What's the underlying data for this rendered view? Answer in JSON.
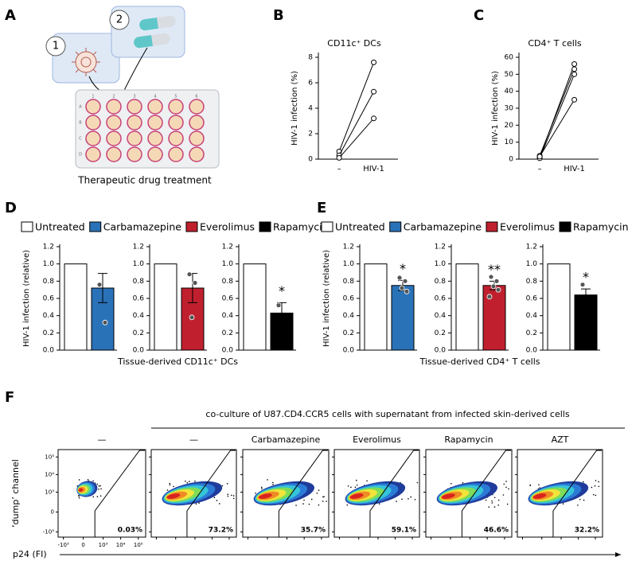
{
  "figure_a": {
    "letter": "A",
    "steps": [
      "1",
      "2"
    ],
    "plate_columns": [
      "1",
      "2",
      "3",
      "4",
      "5",
      "6"
    ],
    "plate_rows": [
      "A",
      "B",
      "C",
      "D"
    ],
    "caption": "Therapeutic drug treatment"
  },
  "chart_data": [
    {
      "type": "line",
      "letter": "B",
      "title": "CD11c⁺ DCs",
      "ylabel": "HIV-1 infection (%)",
      "categories": [
        "–",
        "HIV-1"
      ],
      "series": [
        {
          "values": [
            0.6,
            7.6
          ]
        },
        {
          "values": [
            0.3,
            5.3
          ]
        },
        {
          "values": [
            0.1,
            3.2
          ]
        }
      ],
      "color": "#000000",
      "ylim": [
        0,
        8
      ],
      "yticks": [
        0,
        2,
        4,
        6,
        8
      ]
    },
    {
      "type": "line",
      "letter": "C",
      "title": "CD4⁺ T cells",
      "ylabel": "HIV-1 infection (%)",
      "categories": [
        "–",
        "HIV-1"
      ],
      "series": [
        {
          "values": [
            1,
            56
          ]
        },
        {
          "values": [
            2,
            53
          ]
        },
        {
          "values": [
            0.5,
            50
          ]
        },
        {
          "values": [
            1.5,
            35
          ]
        }
      ],
      "color": "#000000",
      "ylim": [
        0,
        60
      ],
      "yticks": [
        0,
        10,
        20,
        30,
        40,
        50,
        60
      ]
    },
    {
      "type": "bar",
      "letter": "D",
      "legend": [
        {
          "name": "Untreated",
          "color": "#ffffff"
        },
        {
          "name": "Carbamazepine",
          "color": "#2a72b8"
        },
        {
          "name": "Everolimus",
          "color": "#c0202e"
        },
        {
          "name": "Rapamycin",
          "color": "#000000"
        }
      ],
      "ylabel": "HIV-1 infection (relative)",
      "xlabel": "Tissue-derived CD11c⁺ DCs",
      "ylim": [
        0,
        1.2
      ],
      "yticks": [
        {
          "value": 0,
          "label": "0.0"
        },
        0.2,
        0.4,
        0.6,
        0.8,
        {
          "value": 1,
          "label": "1.0"
        },
        1.2
      ],
      "subplots": [
        {
          "values": [
            1,
            0.72
          ],
          "errors": [
            null,
            0.17
          ],
          "points": [
            0.76,
            0.32
          ]
        },
        {
          "values": [
            1,
            0.72
          ],
          "errors": [
            null,
            0.17
          ],
          "points": [
            0.88,
            0.78,
            0.38
          ]
        },
        {
          "values": [
            1,
            0.43
          ],
          "errors": [
            null,
            0.12
          ],
          "points": [
            0.52
          ],
          "annotation": "*"
        }
      ]
    },
    {
      "type": "bar",
      "letter": "E",
      "legend": [
        {
          "name": "Untreated",
          "color": "#ffffff"
        },
        {
          "name": "Carbamazepine",
          "color": "#2a72b8"
        },
        {
          "name": "Everolimus",
          "color": "#c0202e"
        },
        {
          "name": "Rapamycin",
          "color": "#000000"
        }
      ],
      "ylabel": "HIV-1 infection (relative)",
      "xlabel": "Tissue-derived CD4⁺ T cells",
      "ylim": [
        0,
        1.2
      ],
      "yticks": [
        {
          "value": 0,
          "label": "0.0"
        },
        0.2,
        0.4,
        0.6,
        0.8,
        {
          "value": 1,
          "label": "1.0"
        },
        1.2
      ],
      "subplots": [
        {
          "values": [
            1,
            0.75
          ],
          "errors": [
            null,
            0.06
          ],
          "points": [
            0.84,
            0.8,
            0.72,
            0.68
          ],
          "annotation": "*"
        },
        {
          "values": [
            1,
            0.75
          ],
          "errors": [
            null,
            0.05
          ],
          "points": [
            0.85,
            0.8,
            0.74,
            0.7,
            0.62
          ],
          "annotation": "**"
        },
        {
          "values": [
            1,
            0.64
          ],
          "errors": [
            null,
            0.07
          ],
          "points": [
            0.76
          ],
          "annotation": "*"
        }
      ]
    },
    {
      "type": "flow",
      "letter": "F",
      "header": "co-culture of U87.CD4.CCR5 cells with supernatant from infected skin-derived cells",
      "ylabel": "‘dump’ channel",
      "xlabel": "p24 (FI)",
      "categories": [
        "—",
        "—",
        "Carbamazepine",
        "Everolimus",
        "Rapamycin",
        "AZT"
      ],
      "label_colors": [
        "#000000",
        "#000000",
        "#2a72b8",
        "#c0202e",
        "#000000",
        "#000000"
      ],
      "values": [
        0.03,
        73.2,
        35.7,
        59.1,
        46.6,
        32.2
      ],
      "value_labels": [
        "0.03%",
        "73.2%",
        "35.7%",
        "59.1%",
        "46.6%",
        "32.2%"
      ],
      "xlim": [
        -2000,
        262144
      ],
      "ylim": [
        -2000,
        262144
      ],
      "xticks": [
        {
          "value": -1000,
          "label": "-10³"
        },
        0,
        {
          "value": 1000,
          "label": "10³"
        },
        {
          "value": 10000,
          "label": "10⁴"
        },
        {
          "value": 100000,
          "label": "10⁵"
        }
      ],
      "yticks": [
        {
          "value": -1000,
          "label": "-10³"
        },
        0,
        {
          "value": 1000,
          "label": "10³"
        },
        {
          "value": 10000,
          "label": "10⁴"
        },
        {
          "value": 100000,
          "label": "10⁵"
        }
      ]
    }
  ]
}
